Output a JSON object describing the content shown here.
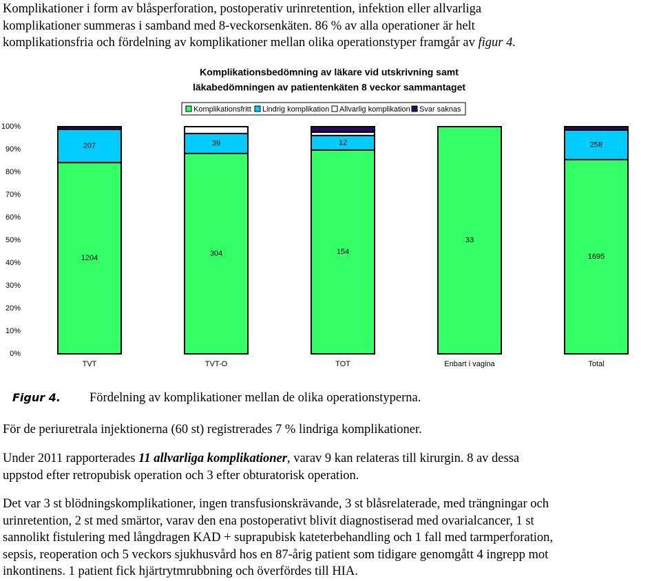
{
  "intro": {
    "lines": [
      "Komplikationer i form av blåsperforation, postoperativ urinretention, infektion eller allvarliga",
      "komplikationer summeras i samband med 8-veckorsenkäten. 86 % av alla operationer är helt",
      "komplikationsfria och fördelning av komplikationer mellan olika operationstyper framgår av"
    ],
    "figure_ref": "figur 4."
  },
  "chart_data": {
    "type": "stacked_percent_bar",
    "title": [
      "Komplikationsbedömning av läkare vid utskrivning samt",
      "läkabedömningen av patientenkäten 8 veckor sammantaget"
    ],
    "categories": [
      "TVT",
      "TVT-O",
      "TOT",
      "Enbart i vagina",
      "Total"
    ],
    "series": [
      {
        "name": "Komplikationsfritt",
        "color": "#33ff66",
        "values": [
          84.2,
          88.2,
          89.7,
          100,
          85.5
        ],
        "counts": [
          1204,
          304,
          154,
          33,
          1695
        ]
      },
      {
        "name": "Lindrig komplikation",
        "color": "#00ccff",
        "values": [
          14.6,
          8.8,
          6.4,
          0,
          13.0
        ],
        "counts": [
          207,
          39,
          12,
          null,
          258
        ]
      },
      {
        "name": "Allvarlig komplikation",
        "color": "#ffffff",
        "values": [
          0,
          3.0,
          1.5,
          0,
          0
        ],
        "counts": [
          null,
          null,
          null,
          null,
          null
        ]
      },
      {
        "name": "Svar saknas",
        "color": "#2b0a5e",
        "values": [
          1.2,
          0,
          2.4,
          0,
          1.5
        ],
        "counts": [
          null,
          null,
          null,
          null,
          null
        ]
      }
    ],
    "ylim": [
      0,
      100
    ],
    "yticks": [
      {
        "value": 0,
        "label": "0%"
      },
      {
        "value": 10,
        "label": "10%"
      },
      {
        "value": 20,
        "label": "20%"
      },
      {
        "value": 30,
        "label": "30%"
      },
      {
        "value": 40,
        "label": "40%"
      },
      {
        "value": 50,
        "label": "50%"
      },
      {
        "value": 60,
        "label": "60%"
      },
      {
        "value": 70,
        "label": "70%"
      },
      {
        "value": 80,
        "label": "80%"
      },
      {
        "value": 90,
        "label": "90%"
      },
      {
        "value": 100,
        "label": "100%"
      }
    ],
    "grid": false,
    "legend": "top"
  },
  "caption": {
    "label": "Figur 4.",
    "text": "Fördelning av komplikationer mellan de olika operationstyperna."
  },
  "p1": "För de periuretrala injektionerna (60 st) registrerades 7 % lindriga komplikationer.",
  "p2": {
    "before": "Under 2011 rapporterades",
    "emphasis": "11 allvarliga komplikationer",
    "after": ", varav 9 kan relateras till kirurgin. 8 av dessa",
    "line2": "uppstod efter retropubisk operation och 3 efter obturatorisk operation."
  },
  "p3": [
    "Det var 3 st blödningskomplikationer, ingen transfusionskrävande, 3 st blåsrelaterade, med trängningar och",
    "urinretention, 2 st med smärtor, varav den ena postoperativt blivit diagnostiserad med ovarialcancer, 1 st",
    "sannolikt fistulering med långdragen KAD + suprapubisk kateterbehandling och 1 fall med tarmperforation,",
    "sepsis, reoperation och 5 veckors sjukhusvård hos en 87-årig patient som tidigare genomgått 4 ingrepp mot",
    "inkontinens. 1 patient fick hjärtrytmrubbning och överfördes till HIA."
  ]
}
